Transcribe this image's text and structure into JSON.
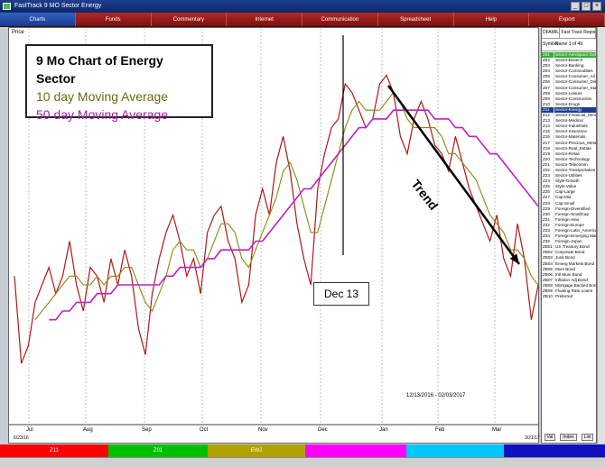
{
  "window": {
    "title": "FastTrack  9 MO  Sector Energy",
    "controls": [
      "_",
      "□",
      "×"
    ]
  },
  "menu": {
    "items": [
      "Charts",
      "Funds",
      "Commentary",
      "Internet",
      "Communication",
      "Spreadsheet",
      "Help",
      "Export"
    ]
  },
  "legend": {
    "line1": "9 Mo Chart of Energy Sector",
    "line2": "10 day Moving Average",
    "line3": "50 day Moving Average"
  },
  "annotations": {
    "dec13": "Dec 13",
    "trend": "Trend",
    "date_range": "12/13/2016 - 02/03/2017",
    "price_label": "Price"
  },
  "colors": {
    "price": "#b01818",
    "ma10": "#8a8a10",
    "ma50": "#c020c0",
    "trend_arrow": "#000000"
  },
  "chart_data": {
    "type": "line",
    "title": "9 Mo Chart of Energy Sector",
    "xlabel": "",
    "ylabel": "",
    "x_tick_labels": [
      "Jul",
      "Aug",
      "Sep",
      "Oct",
      "Nov",
      "Dec",
      "Jan",
      "Feb",
      "Mar"
    ],
    "start_label": "6/23/16",
    "end_label": "3/21/17",
    "grid": "vertical",
    "legend_position": "top-left",
    "series": [
      {
        "name": "9 Mo Chart of Energy Sector",
        "values": [
          72,
          62,
          64,
          69,
          71,
          73,
          70,
          72,
          76,
          71,
          68,
          73,
          72,
          69,
          74,
          71,
          75,
          72,
          66,
          63,
          70,
          74,
          77,
          79,
          76,
          72,
          74,
          70,
          77,
          79,
          80,
          76,
          74,
          69,
          71,
          79,
          82,
          79,
          85,
          88,
          84,
          78,
          74,
          71,
          82,
          86,
          89,
          90,
          94,
          93,
          91,
          89,
          90,
          94,
          95,
          93,
          88,
          86,
          90,
          92,
          90,
          87,
          86,
          84,
          88,
          85,
          82,
          80,
          78,
          76,
          79,
          74,
          72,
          78,
          74,
          67,
          71
        ]
      },
      {
        "name": "10 day Moving Average",
        "values": [
          null,
          null,
          null,
          67,
          68,
          69,
          70,
          71,
          72,
          72,
          71,
          71,
          72,
          71,
          72,
          72,
          73,
          73,
          71,
          69,
          68,
          70,
          72,
          75,
          76,
          75,
          75,
          73,
          74,
          76,
          78,
          78,
          77,
          74,
          73,
          75,
          77,
          79,
          81,
          84,
          85,
          83,
          80,
          77,
          77,
          80,
          83,
          86,
          89,
          91,
          92,
          91,
          91,
          91,
          92,
          93,
          92,
          90,
          89,
          89,
          89,
          89,
          88,
          86,
          86,
          85,
          84,
          83,
          81,
          79,
          78,
          77,
          75,
          75,
          74,
          72,
          71
        ]
      },
      {
        "name": "50 day Moving Average",
        "values": [
          null,
          null,
          null,
          null,
          null,
          67,
          67,
          68,
          68,
          69,
          69,
          69,
          70,
          70,
          70,
          71,
          71,
          71,
          71,
          71,
          71,
          71,
          72,
          72,
          73,
          73,
          73,
          73,
          74,
          74,
          75,
          75,
          75,
          75,
          75,
          76,
          76,
          77,
          78,
          79,
          80,
          81,
          82,
          82,
          83,
          84,
          85,
          86,
          87,
          88,
          89,
          89,
          90,
          90,
          90,
          91,
          91,
          91,
          91,
          91,
          91,
          90,
          90,
          90,
          89,
          89,
          88,
          88,
          87,
          86,
          86,
          85,
          84,
          83,
          82,
          81,
          80
        ]
      }
    ],
    "ylim": [
      55,
      100
    ]
  },
  "bottom_bar": {
    "segments": [
      {
        "label": "Z11",
        "color": "#ff0000"
      },
      {
        "label": "Z01",
        "color": "#00c000"
      },
      {
        "label": "EWJ",
        "color": "#b0a000"
      },
      {
        "label": "",
        "color": "#ff00ff"
      },
      {
        "label": "",
        "color": "#00c8ff"
      },
      {
        "label": "",
        "color": "#1010c0"
      }
    ]
  },
  "right_panel": {
    "tabs": [
      "DFAMILY",
      "Fast Track Report 2"
    ],
    "header_symbol": "Symbol",
    "header_name": "Name 1 of 49 selected",
    "selected_symbol": "Z11",
    "rows": [
      [
        "Z01",
        "Sector-Aerospace Defense"
      ],
      [
        "Z02",
        "Sector-Biotech"
      ],
      [
        "Z03",
        "Sector-Banking"
      ],
      [
        "Z04",
        "Sector-Commodities"
      ],
      [
        "Z05",
        "Sector-Consumer_All"
      ],
      [
        "Z06",
        "Sector-Consumer_Discret"
      ],
      [
        "Z07",
        "Sector-Consumer_Staple"
      ],
      [
        "Z08",
        "Sector-Leisure"
      ],
      [
        "Z09",
        "Sector-Construction"
      ],
      [
        "Z10",
        "Sector-Drugs"
      ],
      [
        "Z11",
        "Sector-Energy"
      ],
      [
        "Z12",
        "Sector-Financial_Services"
      ],
      [
        "Z13",
        "Sector-Medical"
      ],
      [
        "Z14",
        "Sector-Industrials"
      ],
      [
        "Z15",
        "Sector-Insurance"
      ],
      [
        "Z16",
        "Sector-Materials"
      ],
      [
        "Z17",
        "Sector-Precious_Metals"
      ],
      [
        "Z18",
        "Sector-Real_Estate"
      ],
      [
        "Z19",
        "Sector-Retail"
      ],
      [
        "Z20",
        "Sector-Technology"
      ],
      [
        "Z21",
        "Sector-Telecomm"
      ],
      [
        "Z22",
        "Sector-Transportation"
      ],
      [
        "Z23",
        "Sector-Utilities"
      ],
      [
        "Z24",
        "Style-Growth"
      ],
      [
        "Z25",
        "Style-Value"
      ],
      [
        "Z26",
        "Cap-Large"
      ],
      [
        "Z27",
        "Cap-Mid"
      ],
      [
        "Z28",
        "Cap-Small"
      ],
      [
        "Z29",
        "Foreign-Diversified"
      ],
      [
        "Z30",
        "Foreign-SmallCap"
      ],
      [
        "Z31",
        "Foreign-Asia"
      ],
      [
        "Z32",
        "Foreign-Europe"
      ],
      [
        "Z33",
        "Foreign-Latin_America"
      ],
      [
        "Z34",
        "Foreign-Emerging Market"
      ],
      [
        "Z35",
        "Foreign-Japan"
      ],
      [
        "ZB01",
        "US Treasury Bond"
      ],
      [
        "ZB02",
        "Corporate Bond"
      ],
      [
        "ZB03",
        "Junk Bond"
      ],
      [
        "ZB04",
        "Emerg Markets Bond"
      ],
      [
        "ZB05",
        "Muni Bond"
      ],
      [
        "ZB06",
        "Intl Muni Bond"
      ],
      [
        "ZB07",
        "Inflation Adj Bond"
      ],
      [
        "ZB08",
        "Mortgage Backed Bond"
      ],
      [
        "ZB09",
        "Floating Rate Loans"
      ],
      [
        "ZB10",
        "Preferred"
      ]
    ],
    "footer": [
      "Val",
      "Index",
      "List"
    ]
  }
}
